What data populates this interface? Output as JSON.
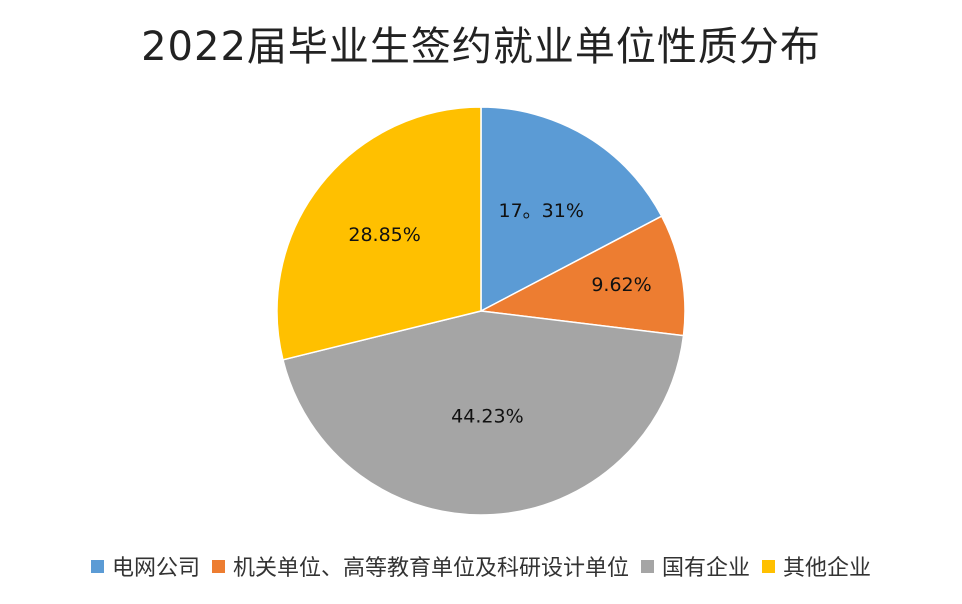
{
  "chart_data": {
    "type": "pie",
    "title": "2022届毕业生签约就业单位性质分布",
    "categories": [
      "电网公司",
      "机关单位、高等教育单位及科研设计单位",
      "国有企业",
      "其他企业"
    ],
    "values": [
      17.31,
      9.62,
      44.23,
      28.85
    ],
    "labels": [
      "17。31%",
      "9.62%",
      "44.23%",
      "28.85%"
    ],
    "colors": [
      "#5B9BD5",
      "#ED7D31",
      "#A5A5A5",
      "#FFC000"
    ],
    "legend": "bottom"
  }
}
